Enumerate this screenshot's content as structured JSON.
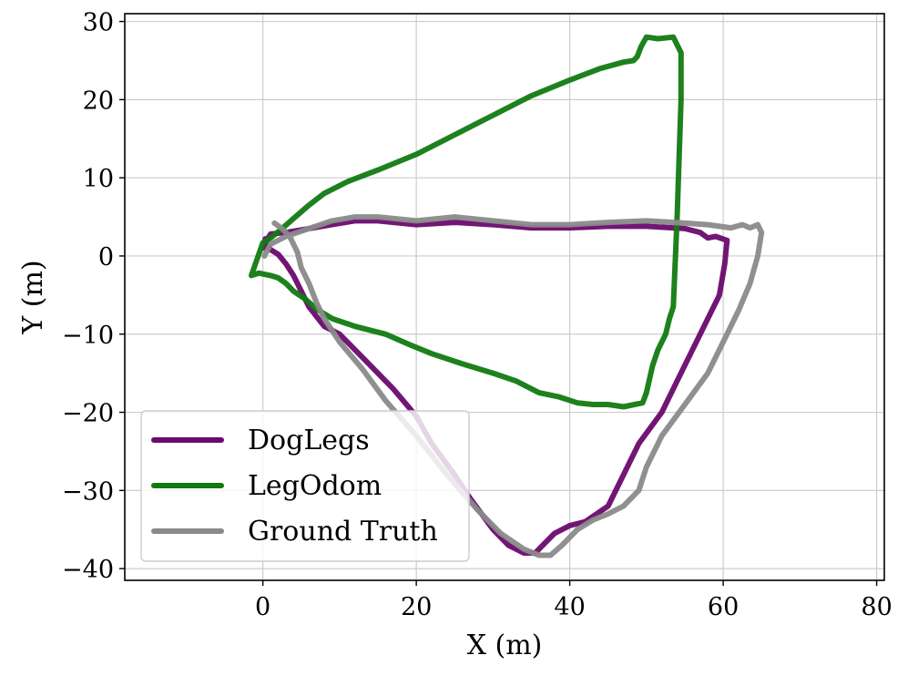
{
  "chart_data": {
    "type": "line",
    "title": "",
    "xlabel": "X (m)",
    "ylabel": "Y (m)",
    "xlim": [
      -18,
      81
    ],
    "ylim": [
      -41.5,
      31
    ],
    "xticks": [
      0,
      20,
      40,
      60,
      80
    ],
    "xtick_labels": [
      "0",
      "20",
      "40",
      "60",
      "80"
    ],
    "yticks": [
      -40,
      -30,
      -20,
      -10,
      0,
      10,
      20,
      30
    ],
    "ytick_labels": [
      "−40",
      "−30",
      "−20",
      "−10",
      "0",
      "10",
      "20",
      "30"
    ],
    "grid": true,
    "legend_position": "lower-left",
    "series": [
      {
        "name": "DogLegs",
        "color": "#6a0a6e",
        "x": [
          0.2,
          0.5,
          1.0,
          3.0,
          6.0,
          9.0,
          12.0,
          15.0,
          20.0,
          25.0,
          30.0,
          35.0,
          40.0,
          45.0,
          50.0,
          55.0,
          57.0,
          58.0,
          59.0,
          60.5,
          60.2,
          59.5,
          57.0,
          54.0,
          52.0,
          49.0,
          47.0,
          45.0,
          42.0,
          40.0,
          38.0,
          36.5,
          35.5,
          34.0,
          32.0,
          30.0,
          27.0,
          25.0,
          22.0,
          20.0,
          17.0,
          13.0,
          10.0,
          8.0,
          6.0,
          5.0,
          4.0,
          3.0,
          2.0,
          1.0,
          0.5,
          0.3
        ],
        "y": [
          1.0,
          2.0,
          2.8,
          3.0,
          3.5,
          4.0,
          4.5,
          4.5,
          4.0,
          4.3,
          4.0,
          3.6,
          3.6,
          3.8,
          3.8,
          3.5,
          3.0,
          2.3,
          2.5,
          2.0,
          -1.0,
          -5.0,
          -10.0,
          -16.0,
          -20.0,
          -24.0,
          -28.0,
          -32.0,
          -34.0,
          -34.5,
          -35.5,
          -37.0,
          -38.0,
          -38.0,
          -37.0,
          -35.0,
          -31.0,
          -28.0,
          -24.0,
          -20.5,
          -17.0,
          -13.0,
          -10.0,
          -9.0,
          -6.5,
          -4.5,
          -2.5,
          -1.0,
          0.2,
          0.8,
          1.5,
          2.2
        ]
      },
      {
        "name": "LegOdom",
        "color": "#117a11",
        "x": [
          -1.5,
          -0.5,
          1.0,
          2.0,
          3.0,
          4.0,
          5.5,
          7.0,
          9.0,
          12.0,
          16.0,
          19.0,
          22.0,
          26.0,
          30.0,
          33.0,
          36.0,
          38.5,
          41.0,
          43.0,
          45.0,
          47.0,
          49.5,
          50.0,
          50.8,
          51.5,
          52.5,
          53.0,
          53.5,
          54.0,
          54.5,
          54.5,
          53.5,
          51.5,
          50.0,
          49.3,
          48.8,
          48.3,
          47.0,
          44.0,
          40.0,
          35.0,
          30.0,
          25.0,
          20.0,
          15.0,
          11.0,
          8.0,
          6.0,
          4.0,
          2.5,
          1.0,
          0.0,
          -1.5
        ],
        "y": [
          -2.5,
          -2.2,
          -2.5,
          -2.8,
          -3.5,
          -4.5,
          -5.5,
          -6.8,
          -8.0,
          -9.0,
          -10.0,
          -11.3,
          -12.5,
          -13.8,
          -15.0,
          -16.0,
          -17.5,
          -18.0,
          -18.8,
          -19.0,
          -19.0,
          -19.3,
          -18.8,
          -17.5,
          -14.0,
          -12.0,
          -10.0,
          -8.0,
          -6.5,
          5.0,
          20.0,
          26.0,
          28.0,
          27.8,
          28.0,
          26.8,
          25.5,
          25.0,
          24.8,
          24.0,
          22.5,
          20.5,
          18.0,
          15.5,
          13.0,
          11.0,
          9.5,
          8.0,
          6.5,
          4.8,
          3.5,
          2.3,
          1.7,
          -2.5
        ]
      },
      {
        "name": "Ground Truth",
        "color": "#8a8a8a",
        "x": [
          0.2,
          1.0,
          3.0,
          6.0,
          9.0,
          12.0,
          15.0,
          20.0,
          25.0,
          30.0,
          35.0,
          40.0,
          45.0,
          50.0,
          55.0,
          58.0,
          61.0,
          62.5,
          63.5,
          64.5,
          65.0,
          64.5,
          63.5,
          62.0,
          60.0,
          58.0,
          55.0,
          52.0,
          50.0,
          49.0,
          47.0,
          45.0,
          43.0,
          41.0,
          39.0,
          37.5,
          36.0,
          34.0,
          31.0,
          28.0,
          24.0,
          20.0,
          16.0,
          13.0,
          10.0,
          8.0,
          7.0,
          6.0,
          5.0,
          4.5,
          3.5,
          2.5,
          1.5
        ],
        "y": [
          0.0,
          1.5,
          2.5,
          3.5,
          4.5,
          5.0,
          5.0,
          4.5,
          5.0,
          4.5,
          4.0,
          4.0,
          4.3,
          4.5,
          4.2,
          4.0,
          3.6,
          4.0,
          3.6,
          4.0,
          3.0,
          0.0,
          -3.5,
          -7.0,
          -11.0,
          -15.0,
          -19.0,
          -23.0,
          -27.0,
          -30.0,
          -32.0,
          -33.0,
          -33.8,
          -35.0,
          -37.0,
          -38.3,
          -38.3,
          -37.5,
          -35.5,
          -32.5,
          -28.0,
          -23.0,
          -18.5,
          -14.5,
          -11.0,
          -8.0,
          -6.0,
          -3.5,
          -1.5,
          0.5,
          2.5,
          3.5,
          4.2
        ]
      }
    ]
  }
}
